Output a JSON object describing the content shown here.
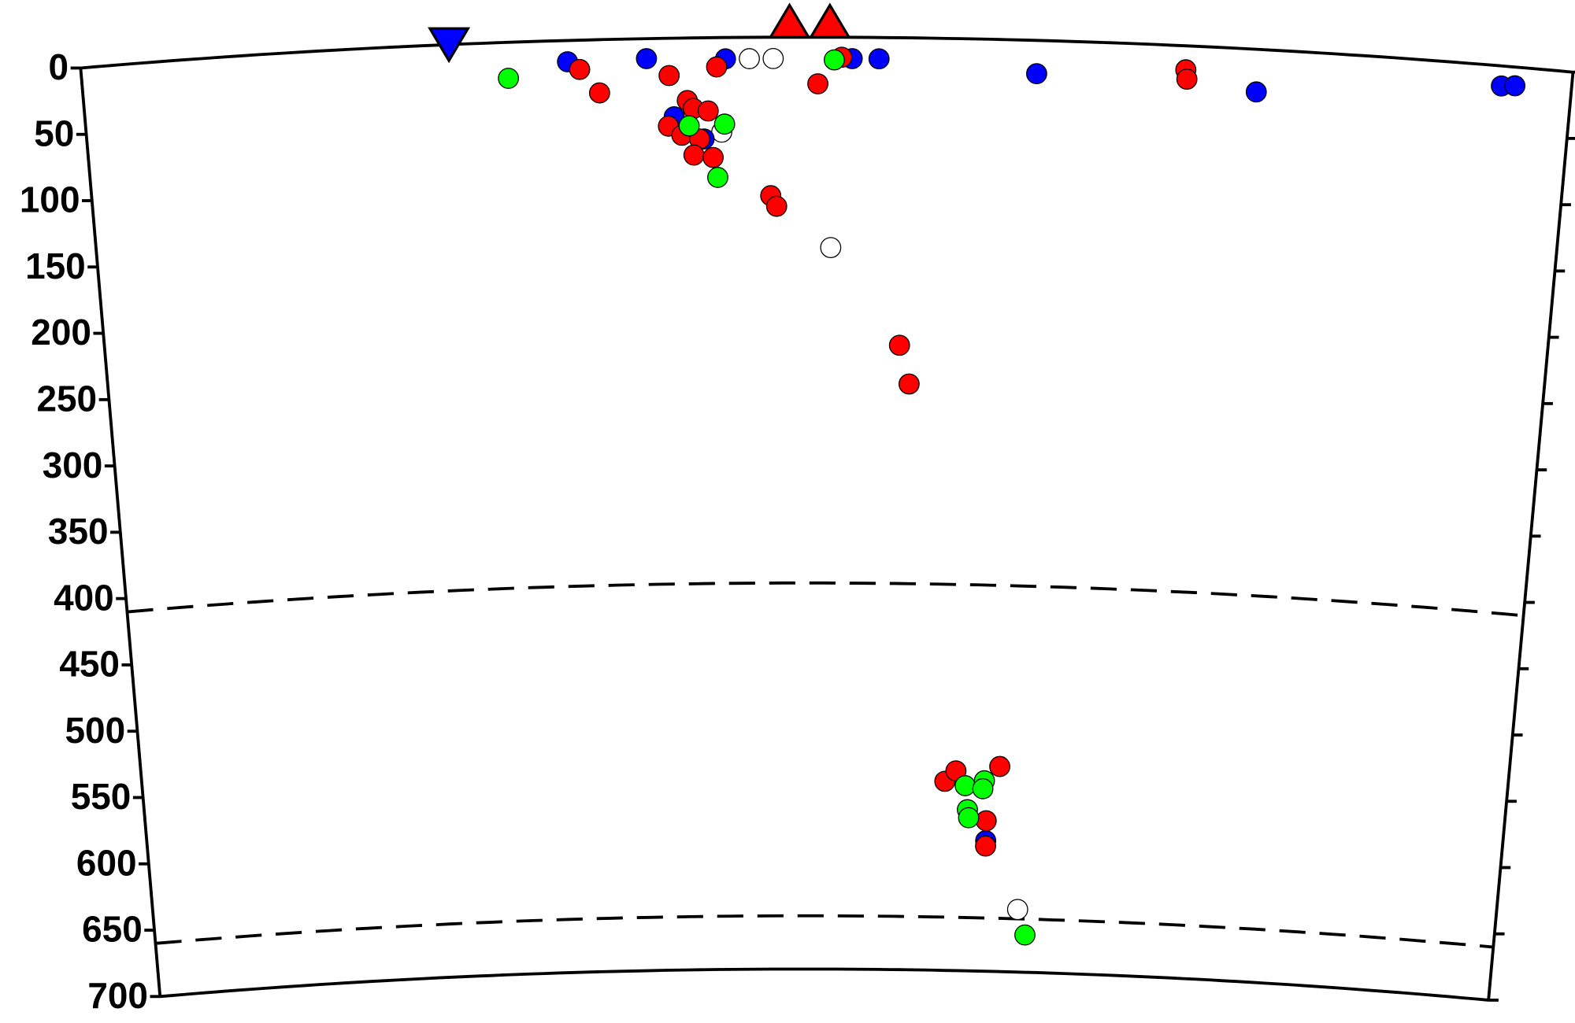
{
  "chart_data": {
    "type": "scatter",
    "xlim": [
      0,
      100
    ],
    "ylim": [
      0,
      700
    ],
    "yticks": [
      0,
      50,
      100,
      150,
      200,
      250,
      300,
      350,
      400,
      450,
      500,
      550,
      600,
      650,
      700
    ],
    "discontinuities": [
      410,
      660
    ],
    "markers": [
      {
        "x": 24.7,
        "color": "#0000ff",
        "shape": "down"
      },
      {
        "x": 47.5,
        "color": "#ff0000",
        "shape": "up"
      },
      {
        "x": 50.2,
        "color": "#ff0000",
        "shape": "up"
      }
    ],
    "series": [
      {
        "color": "#ffffff",
        "x": [
          44.8,
          46.4,
          42.9,
          50.3,
          64.4
        ],
        "values": [
          16,
          16,
          71,
          158,
          653
        ]
      },
      {
        "color": "#0000ff",
        "x": [
          32.6,
          37.9,
          43.2,
          51.7,
          53.5,
          64.1,
          78.9,
          95.3,
          96.2,
          39.7,
          41.7,
          61.9
        ],
        "values": [
          16,
          15,
          16,
          16,
          16,
          25,
          32,
          15,
          14,
          59,
          76,
          602
        ]
      },
      {
        "color": "#ff0000",
        "x": [
          33.4,
          34.7,
          39.4,
          42.6,
          51.0,
          49.4,
          74.1,
          74.2,
          40.6,
          41.0,
          42.0,
          39.3,
          40.2,
          41.4,
          41.0,
          42.3,
          46.2,
          46.6,
          55.1,
          55.8,
          58.8,
          59.6,
          62.8,
          61.9,
          61.9
        ],
        "values": [
          22,
          40,
          28,
          22,
          15,
          35,
          18,
          25,
          47,
          53,
          55,
          66,
          73,
          76,
          88,
          90,
          119,
          127,
          231,
          260,
          558,
          550,
          546,
          587,
          606
        ]
      },
      {
        "color": "#00ff00",
        "x": [
          28.6,
          50.5,
          40.7,
          43.1,
          42.6,
          60.3,
          61.7,
          61.6,
          60.5,
          60.6,
          65.0
        ],
        "values": [
          27,
          17,
          66,
          65,
          105,
          561,
          557,
          563,
          579,
          585,
          672
        ]
      }
    ]
  }
}
